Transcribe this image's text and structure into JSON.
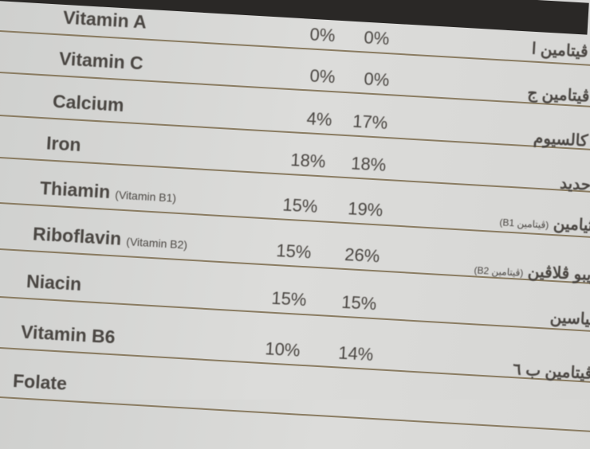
{
  "label": {
    "rows": [
      {
        "name": "Vitamin A",
        "sub": "",
        "v1": "0%",
        "v2": "0%",
        "ar": "ڤيتامين ا",
        "ar_sub": ""
      },
      {
        "name": "Vitamin C",
        "sub": "",
        "v1": "0%",
        "v2": "0%",
        "ar": "ڤيتامين ج",
        "ar_sub": ""
      },
      {
        "name": "Calcium",
        "sub": "",
        "v1": "4%",
        "v2": "17%",
        "ar": "كالسيوم",
        "ar_sub": ""
      },
      {
        "name": "Iron",
        "sub": "",
        "v1": "18%",
        "v2": "18%",
        "ar": "حديد",
        "ar_sub": ""
      },
      {
        "name": "Thiamin",
        "sub": "(Vitamin B1)",
        "v1": "15%",
        "v2": "19%",
        "ar": "ثيامين",
        "ar_sub": "(ڤيتامين B1)"
      },
      {
        "name": "Riboflavin",
        "sub": "(Vitamin B2)",
        "v1": "15%",
        "v2": "26%",
        "ar": "ريبو ڤلاڤين",
        "ar_sub": "(ڤيتامين B2)"
      },
      {
        "name": "Niacin",
        "sub": "",
        "v1": "15%",
        "v2": "15%",
        "ar": "نياسين",
        "ar_sub": ""
      },
      {
        "name": "Vitamin B6",
        "sub": "",
        "v1": "10%",
        "v2": "14%",
        "ar": "ڤيتامين ب ٦",
        "ar_sub": ""
      },
      {
        "name": "Folate",
        "sub": "",
        "v1": "",
        "v2": "",
        "ar": "",
        "ar_sub": ""
      }
    ]
  }
}
